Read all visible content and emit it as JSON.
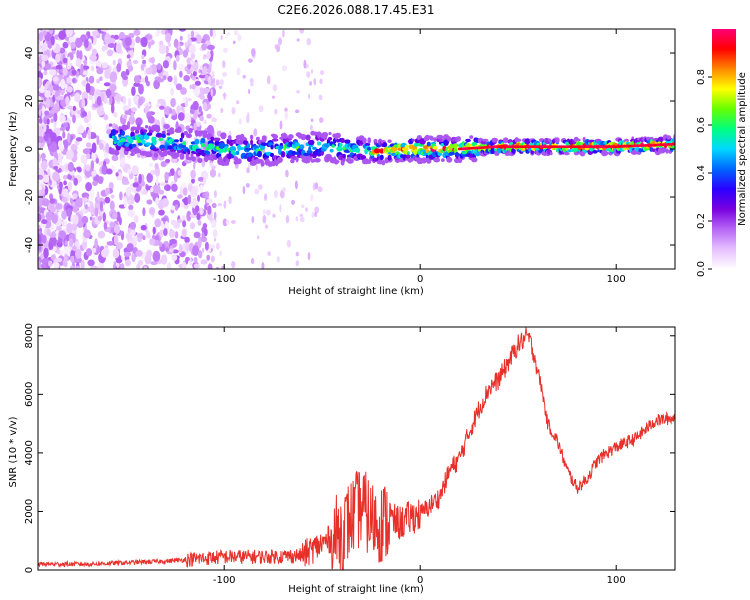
{
  "title": "C2E6.2026.088.17.45.E31",
  "chart_data": [
    {
      "type": "heatmap",
      "xlabel": "Height of straight line (km)",
      "ylabel": "Frequency (Hz)",
      "xlim": [
        -195,
        130
      ],
      "ylim": [
        -50,
        50
      ],
      "xticks": [
        -100,
        0,
        100
      ],
      "yticks": [
        -40,
        -20,
        0,
        20,
        40
      ],
      "colorbar": {
        "label": "Normalized spectral amplitude",
        "range": [
          0,
          1
        ],
        "ticks": [
          0.0,
          0.2,
          0.4,
          0.6,
          0.8
        ],
        "colormap": [
          "#ffffff",
          "#e6bfff",
          "#b566f5",
          "#7a00e0",
          "#2a00ff",
          "#0066ff",
          "#00d8ff",
          "#00ff80",
          "#66ff00",
          "#ffff00",
          "#ff8800",
          "#ff0000",
          "#ff0077"
        ]
      },
      "ridge": {
        "x": [
          -155,
          -130,
          -110,
          -90,
          -70,
          -50,
          -35,
          -20,
          -5,
          5,
          20,
          40,
          60,
          80,
          100,
          130
        ],
        "frequency": [
          4,
          3,
          1,
          -1,
          0,
          1,
          0,
          -1,
          0,
          0,
          0,
          1,
          1,
          1,
          1,
          2
        ]
      }
    },
    {
      "type": "line",
      "xlabel": "Height of straight line (km)",
      "ylabel": "SNR (10 * v/v)",
      "xlim": [
        -195,
        130
      ],
      "ylim": [
        0,
        8300
      ],
      "xticks": [
        -100,
        0,
        100
      ],
      "yticks": [
        0,
        2000,
        4000,
        6000,
        8000
      ],
      "color": "#e8302a",
      "series": [
        {
          "name": "SNR",
          "x": [
            -195,
            -170,
            -150,
            -130,
            -120,
            -100,
            -80,
            -60,
            -50,
            -40,
            -35,
            -30,
            -25,
            -20,
            -15,
            -10,
            -5,
            0,
            5,
            10,
            15,
            20,
            25,
            30,
            35,
            40,
            45,
            50,
            55,
            58,
            62,
            65,
            70,
            75,
            80,
            85,
            90,
            95,
            100,
            110,
            120,
            130
          ],
          "y": [
            200,
            200,
            250,
            300,
            350,
            450,
            450,
            500,
            900,
            1300,
            1800,
            2200,
            1700,
            1600,
            1700,
            1600,
            1800,
            1900,
            2200,
            2500,
            3400,
            3800,
            4700,
            5500,
            6200,
            6500,
            7100,
            7700,
            8000,
            7400,
            6200,
            5000,
            4400,
            3400,
            2800,
            3100,
            3700,
            4000,
            4200,
            4500,
            5100,
            5200
          ]
        }
      ]
    }
  ]
}
